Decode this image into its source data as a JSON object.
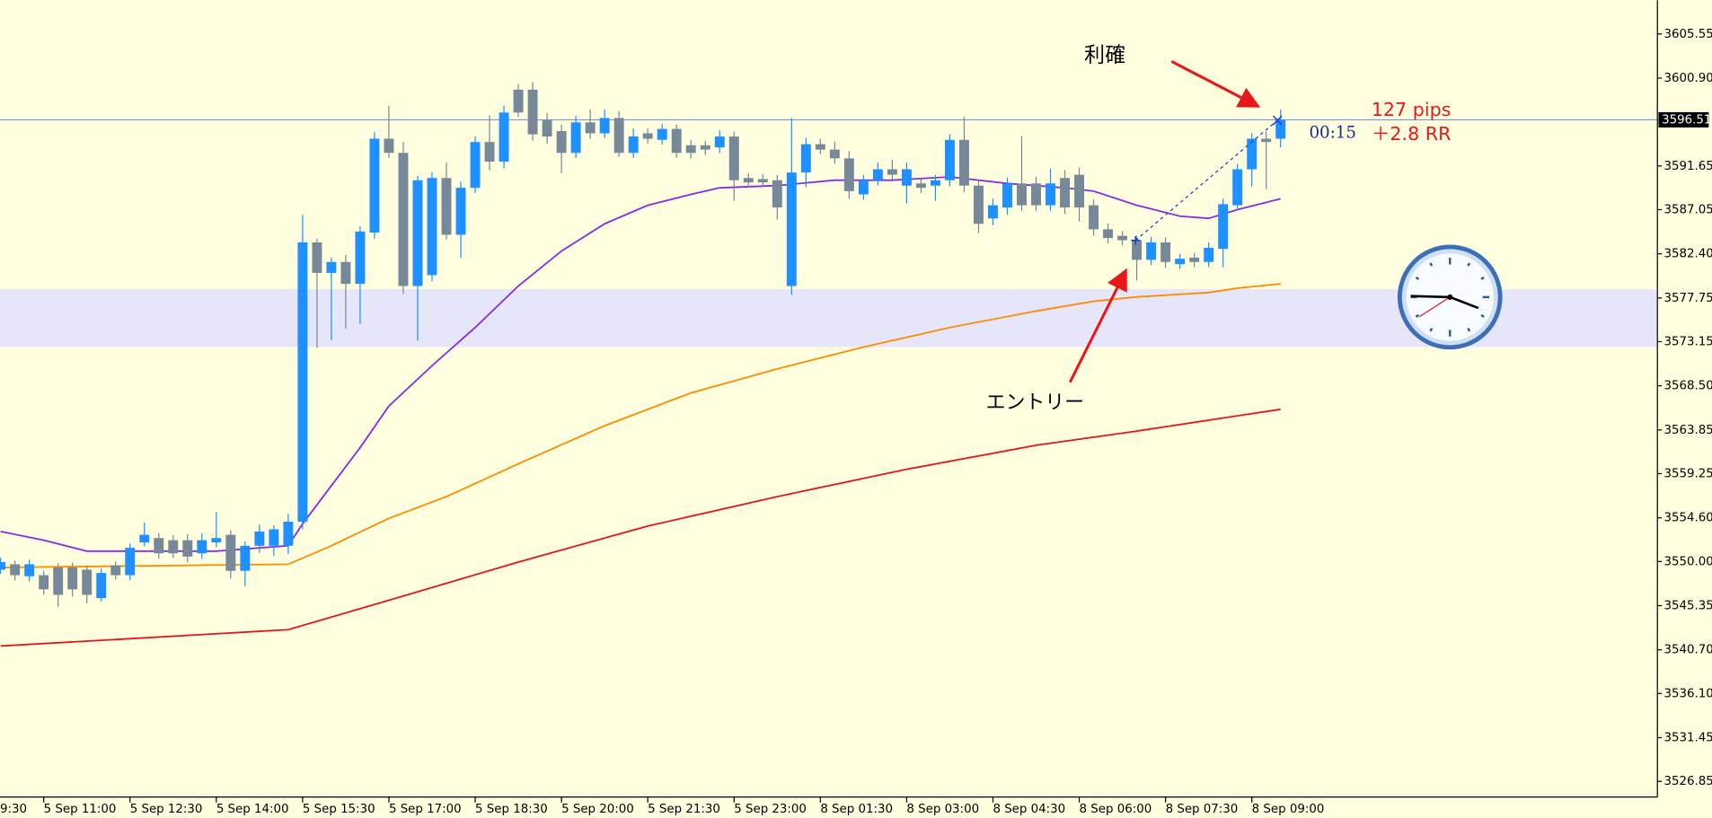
{
  "chart_data": {
    "type": "candlestick",
    "up_color": "#1e90ff",
    "down_color": "#778899",
    "x": [
      3,
      4,
      5,
      6,
      7,
      8,
      9,
      10,
      11,
      12,
      13,
      14,
      15,
      16,
      17,
      18,
      19,
      20,
      21,
      22,
      23,
      24,
      25,
      26,
      27,
      28,
      29,
      30,
      31,
      32,
      33,
      34,
      35,
      36,
      37,
      38,
      39,
      40,
      41,
      42,
      43,
      44,
      45,
      46,
      47,
      48,
      49,
      50,
      51,
      52,
      53,
      54,
      55,
      56,
      57,
      58,
      59,
      60,
      61,
      62,
      63,
      64,
      65,
      66,
      67,
      68,
      69,
      70,
      71,
      72,
      73,
      74,
      75,
      76,
      77,
      78,
      79,
      80,
      81,
      82,
      83,
      84,
      85,
      86,
      87,
      88,
      89,
      90,
      91,
      92
    ],
    "open": [
      3549.14,
      3549.71,
      3548.45,
      3548.56,
      3549.37,
      3549.37,
      3549.14,
      3546.15,
      3549.6,
      3548.56,
      3552.01,
      3552.47,
      3552.24,
      3552.24,
      3550.86,
      3552.01,
      3552.81,
      3549.02,
      3551.66,
      3551.66,
      3551.66,
      3554.19,
      3583.6,
      3580.39,
      3581.54,
      3579.24,
      3584.64,
      3594.52,
      3593.03,
      3579.01,
      3580.16,
      3590.38,
      3584.41,
      3589.35,
      3594.17,
      3592.11,
      3599.69,
      3599.69,
      3596.47,
      3595.32,
      3593.03,
      3596.24,
      3595.09,
      3596.7,
      3593.03,
      3595.09,
      3594.4,
      3595.55,
      3593.83,
      3593.83,
      3593.6,
      3594.75,
      3590.38,
      3590.27,
      3590.15,
      3579.01,
      3590.96,
      3593.94,
      3593.37,
      3592.45,
      3588.66,
      3590.15,
      3591.3,
      3589.58,
      3589.81,
      3589.58,
      3590.15,
      3594.4,
      3589.58,
      3586.13,
      3587.28,
      3589.81,
      3589.81,
      3587.51,
      3590.38,
      3590.73,
      3587.51,
      3584.98,
      3584.29,
      3583.83,
      3581.77,
      3583.6,
      3581.31,
      3582.0,
      3581.54,
      3582.92,
      3587.51,
      3591.3,
      3594.52,
      3594.52
    ],
    "high": [
      3550.4,
      3550.1,
      3550.2,
      3549.0,
      3549.8,
      3549.9,
      3549.6,
      3549.3,
      3550.0,
      3551.9,
      3554.1,
      3553.0,
      3552.8,
      3552.9,
      3553.0,
      3555.2,
      3553.3,
      3552.1,
      3553.9,
      3553.8,
      3555.0,
      3586.5,
      3584.0,
      3582.0,
      3582.3,
      3585.3,
      3595.2,
      3597.97,
      3594.2,
      3590.6,
      3591.0,
      3592.0,
      3590.0,
      3594.8,
      3597.0,
      3598.0,
      3600.3,
      3600.5,
      3597.2,
      3596.0,
      3596.9,
      3597.6,
      3597.6,
      3597.4,
      3595.6,
      3595.6,
      3596.1,
      3596.0,
      3594.4,
      3594.3,
      3595.4,
      3595.3,
      3590.9,
      3590.8,
      3590.7,
      3596.7,
      3594.6,
      3594.5,
      3594.2,
      3593.2,
      3590.7,
      3592.0,
      3592.3,
      3592.0,
      3590.3,
      3590.7,
      3595.0,
      3596.8,
      3590.2,
      3588.2,
      3590.4,
      3594.8,
      3590.5,
      3591.4,
      3591.2,
      3591.5,
      3588.1,
      3585.6,
      3584.8,
      3584.3,
      3584.2,
      3584.1,
      3582.4,
      3582.5,
      3583.6,
      3588.2,
      3591.9,
      3595.1,
      3595.3,
      3597.6
    ],
    "low": [
      3548.7,
      3548.0,
      3547.9,
      3546.5,
      3545.23,
      3546.3,
      3545.6,
      3545.8,
      3548.1,
      3548.0,
      3551.6,
      3550.3,
      3550.4,
      3549.9,
      3550.3,
      3551.5,
      3548.2,
      3547.4,
      3550.9,
      3550.6,
      3550.8,
      3553.4,
      3572.5,
      3573.3,
      3574.5,
      3575.0,
      3584.0,
      3592.5,
      3578.2,
      3573.26,
      3579.5,
      3583.9,
      3582.0,
      3588.8,
      3591.2,
      3591.4,
      3596.8,
      3594.3,
      3594.0,
      3590.9,
      3592.5,
      3594.5,
      3594.6,
      3592.6,
      3592.5,
      3594.0,
      3593.9,
      3592.5,
      3592.4,
      3592.8,
      3593.0,
      3588.0,
      3589.4,
      3589.4,
      3586.0,
      3578.09,
      3589.4,
      3592.9,
      3591.9,
      3588.2,
      3588.1,
      3589.6,
      3590.2,
      3587.7,
      3588.8,
      3588.0,
      3589.5,
      3588.9,
      3584.6,
      3585.4,
      3586.5,
      3586.9,
      3586.9,
      3586.9,
      3586.6,
      3585.8,
      3584.3,
      3583.5,
      3583.3,
      3579.58,
      3581.2,
      3580.9,
      3580.8,
      3581.0,
      3581.0,
      3581.0,
      3587.0,
      3589.5,
      3589.2,
      3593.6
    ],
    "close": [
      3549.94,
      3548.56,
      3549.71,
      3547.07,
      3546.49,
      3547.07,
      3546.49,
      3548.79,
      3548.56,
      3551.44,
      3552.81,
      3550.86,
      3550.86,
      3550.52,
      3552.24,
      3552.47,
      3549.02,
      3551.66,
      3553.16,
      3553.39,
      3554.19,
      3583.6,
      3580.39,
      3581.54,
      3579.24,
      3584.75,
      3594.52,
      3593.03,
      3579.01,
      3590.15,
      3590.38,
      3584.41,
      3589.35,
      3594.17,
      3592.11,
      3597.28,
      3597.28,
      3594.98,
      3594.75,
      3593.03,
      3596.24,
      3595.09,
      3596.7,
      3593.03,
      3594.75,
      3594.52,
      3595.55,
      3593.03,
      3593.03,
      3593.37,
      3594.75,
      3590.15,
      3589.92,
      3589.92,
      3587.28,
      3590.96,
      3593.94,
      3593.37,
      3592.45,
      3589.0,
      3590.15,
      3591.3,
      3590.73,
      3591.3,
      3589.35,
      3590.15,
      3594.4,
      3589.58,
      3585.56,
      3587.51,
      3589.81,
      3587.51,
      3587.51,
      3589.81,
      3587.28,
      3587.28,
      3584.98,
      3584.06,
      3583.83,
      3581.77,
      3583.6,
      3581.54,
      3581.88,
      3581.54,
      3583.03,
      3587.63,
      3591.3,
      3594.52,
      3594.17,
      3596.51
    ],
    "lines": [
      {
        "color": "#8a2be2",
        "x": [
          3,
          6,
          9,
          12,
          18,
          23,
          24,
          28,
          30,
          33,
          36,
          39,
          42,
          45,
          48,
          51,
          53,
          57,
          61,
          65,
          69,
          73,
          77,
          79,
          82,
          85,
          87,
          89,
          92
        ],
        "values": [
          3553.16,
          3552.24,
          3551.09,
          3551.09,
          3551.09,
          3551.66,
          3553.96,
          3562.0,
          3566.37,
          3570.62,
          3574.64,
          3579.01,
          3582.69,
          3585.56,
          3587.51,
          3588.66,
          3589.35,
          3589.58,
          3590.15,
          3590.15,
          3590.5,
          3589.81,
          3589.35,
          3589.0,
          3587.51,
          3586.36,
          3586.13,
          3587.05,
          3588.2
        ]
      },
      {
        "color": "#ff8c00",
        "x": [
          3,
          23,
          26,
          30,
          34,
          39,
          45,
          51,
          57,
          63,
          69,
          75,
          79,
          82,
          87,
          89,
          92
        ],
        "values": [
          3549.37,
          3549.71,
          3551.66,
          3554.54,
          3556.83,
          3560.28,
          3564.3,
          3567.75,
          3570.28,
          3572.58,
          3574.64,
          3576.37,
          3577.4,
          3577.86,
          3578.32,
          3578.78,
          3579.24
        ]
      },
      {
        "color": "#e8141c",
        "x": [
          3,
          23,
          30,
          39,
          48,
          57,
          66,
          75,
          82,
          92
        ],
        "values": [
          3541.1,
          3542.82,
          3545.92,
          3549.94,
          3553.73,
          3556.83,
          3559.71,
          3562.24,
          3563.73,
          3566.03
        ]
      }
    ],
    "zone": [
      3572.58,
      3578.67
    ],
    "zone_color": "#e6e6fa",
    "last_price": 3596.51,
    "price_line_color": "#7a96cc",
    "xlim": [
      2.96,
      118.2
    ],
    "ylim": [
      3525.2,
      3609.1
    ],
    "xticks": [
      {
        "value": 0,
        "label": "9:30"
      },
      {
        "value": 6,
        "label": "5 Sep 11:00"
      },
      {
        "value": 12,
        "label": "5 Sep 12:30"
      },
      {
        "value": 18,
        "label": "5 Sep 14:00"
      },
      {
        "value": 24,
        "label": "5 Sep 15:30"
      },
      {
        "value": 30,
        "label": "5 Sep 17:00"
      },
      {
        "value": 36,
        "label": "5 Sep 18:30"
      },
      {
        "value": 42,
        "label": "5 Sep 20:00"
      },
      {
        "value": 48,
        "label": "5 Sep 21:30"
      },
      {
        "value": 54,
        "label": "5 Sep 23:00"
      },
      {
        "value": 60,
        "label": "8 Sep 01:30"
      },
      {
        "value": 66,
        "label": "8 Sep 03:00"
      },
      {
        "value": 72,
        "label": "8 Sep 04:30"
      },
      {
        "value": 78,
        "label": "8 Sep 06:00"
      },
      {
        "value": 84,
        "label": "8 Sep 07:30"
      },
      {
        "value": 90,
        "label": "8 Sep 09:00"
      }
    ],
    "yticks": [
      3605.55,
      {
        "value": 3600.9,
        "label": "3600.90"
      },
      3591.65,
      3587.05,
      {
        "value": 3582.4,
        "label": "3582.40"
      },
      3577.75,
      3573.15,
      {
        "value": 3568.5,
        "label": "3568.50"
      },
      3563.85,
      3559.25,
      {
        "value": 3554.6,
        "label": "3554.60"
      },
      {
        "value": 3550,
        "label": "3550.00"
      },
      3545.35,
      {
        "value": 3540.7,
        "label": "3540.70"
      },
      {
        "value": 3536.1,
        "label": "3536.10"
      },
      3531.45,
      3526.85
    ],
    "annotations": [
      "利確",
      "エントリー",
      "127 pips",
      "＋2.8 RR",
      "00:15"
    ]
  }
}
